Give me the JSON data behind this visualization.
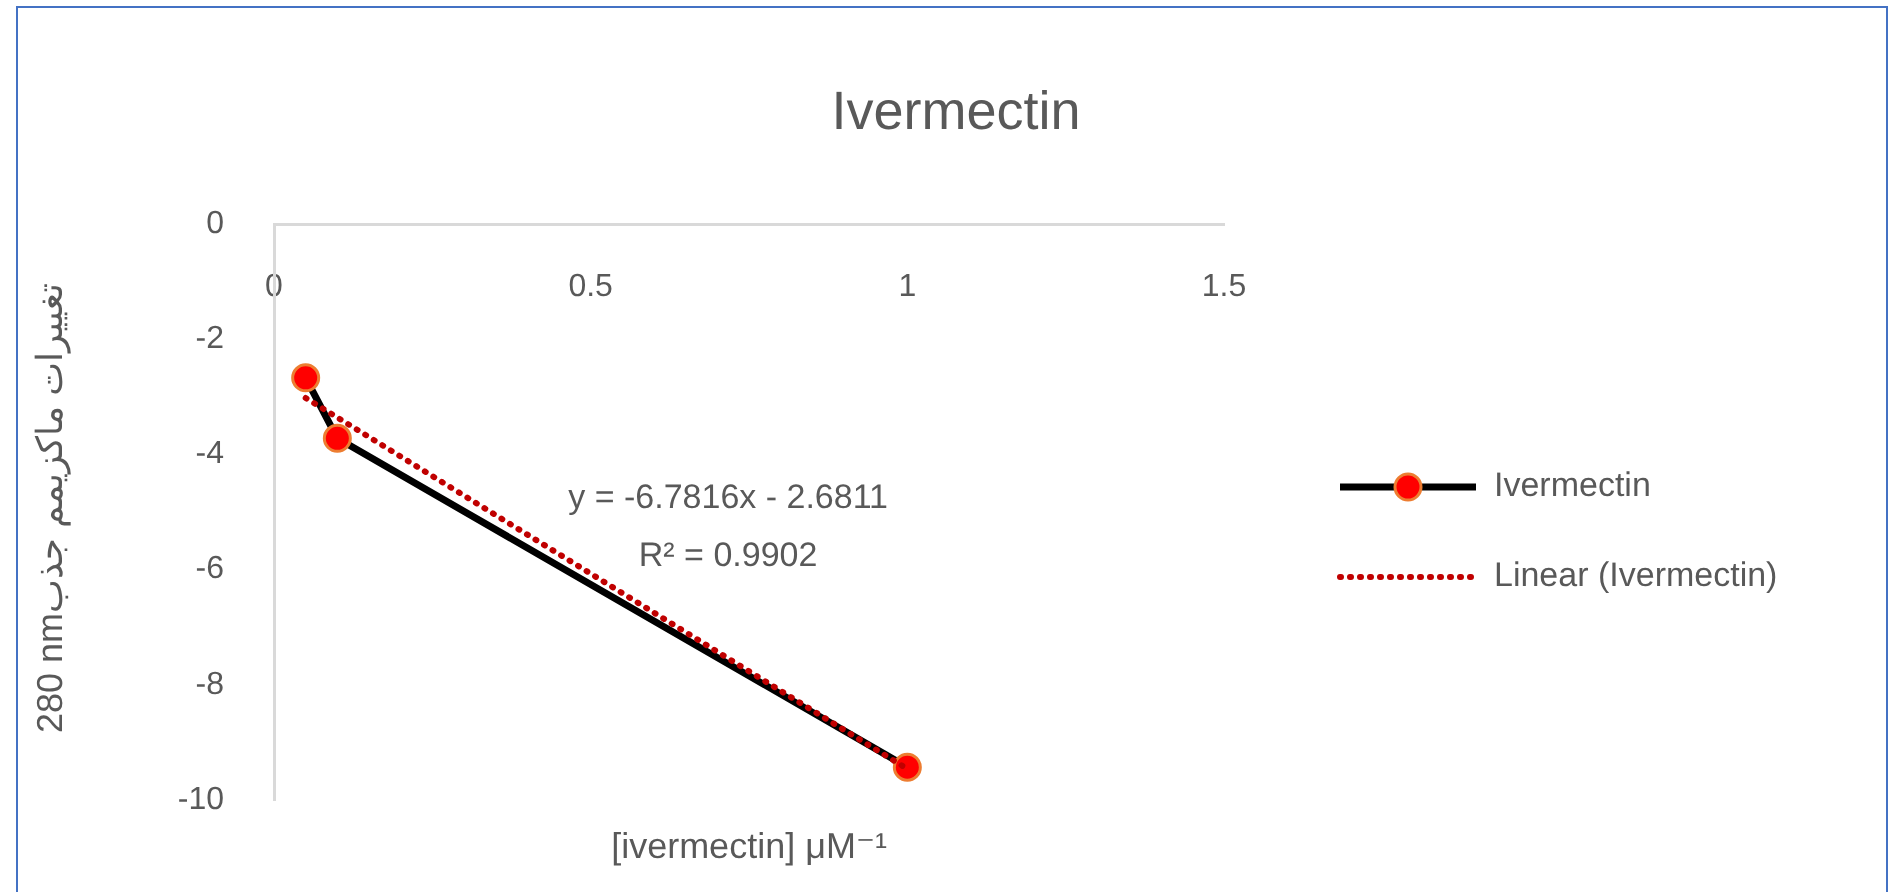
{
  "chart_data": {
    "type": "line",
    "title": "Ivermectin",
    "xlabel": "[ivermectin] μM⁻¹",
    "ylabel": "280 nmتغییرات ماکزیمم جذب",
    "x": [
      0.05,
      0.1,
      1
    ],
    "series": [
      {
        "name": "Ivermectin",
        "color": "#000000",
        "colors": [
          "#ff0000",
          "#ff0000",
          "#ff0000"
        ],
        "values": [
          -2.67,
          -3.72,
          -9.43
        ]
      },
      {
        "name": "Linear (Ivermectin)",
        "type": "line",
        "x": [
          0.05,
          1
        ],
        "values": [
          -3.02,
          -9.46
        ],
        "color": "#c00000",
        "line_style": "dotted",
        "marker": "none"
      }
    ],
    "annotations": [
      "y = -6.7816x - 2.6811",
      "R² = 0.9902"
    ],
    "xlim": [
      0,
      1.5
    ],
    "xticks": [
      0,
      0.5,
      1,
      1.5
    ],
    "ylim": [
      -10,
      0
    ],
    "yticks": [
      -10,
      -8,
      -6,
      -4,
      -2,
      0
    ],
    "marker": "circle",
    "line_style": "solid",
    "legend": "right"
  }
}
